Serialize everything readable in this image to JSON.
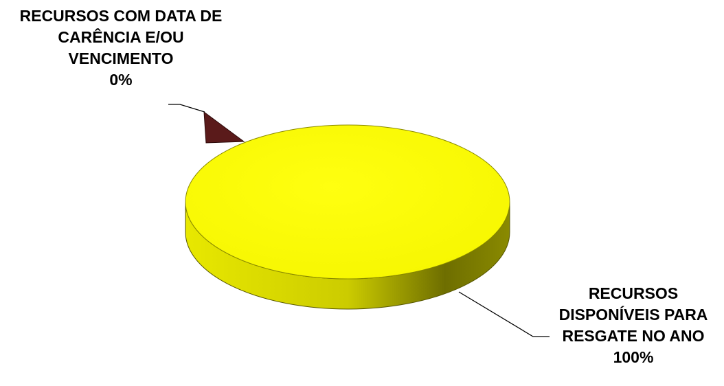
{
  "chart_data": {
    "type": "pie",
    "style": "3d",
    "legend": "none",
    "slices": [
      {
        "label_lines": [
          "RECURSOS COM DATA DE",
          "CARÊNCIA E/OU",
          "VENCIMENTO"
        ],
        "percent_label": "0%",
        "value": 0,
        "color": "#5a1a1a",
        "exploded": true
      },
      {
        "label_lines": [
          "RECURSOS",
          "DISPONÍVEIS PARA",
          "RESGATE NO ANO"
        ],
        "percent_label": "100%",
        "value": 100,
        "color": "#ffff00"
      }
    ]
  }
}
